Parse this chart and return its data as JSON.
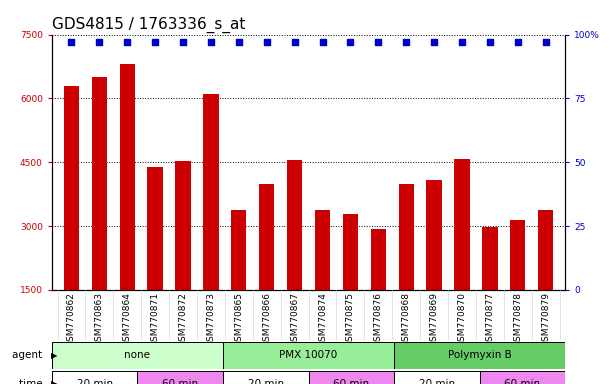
{
  "title": "GDS4815 / 1763336_s_at",
  "samples": [
    "GSM770862",
    "GSM770863",
    "GSM770864",
    "GSM770871",
    "GSM770872",
    "GSM770873",
    "GSM770865",
    "GSM770866",
    "GSM770867",
    "GSM770874",
    "GSM770875",
    "GSM770876",
    "GSM770868",
    "GSM770869",
    "GSM770870",
    "GSM770877",
    "GSM770878",
    "GSM770879"
  ],
  "counts": [
    6300,
    6500,
    6800,
    4380,
    4520,
    6100,
    3380,
    4000,
    4550,
    3380,
    3280,
    2920,
    4000,
    4080,
    4580,
    2980,
    3150,
    3380
  ],
  "percentile_ranks": [
    97,
    97,
    97,
    97,
    97,
    97,
    97,
    97,
    97,
    97,
    97,
    97,
    97,
    97,
    97,
    97,
    97,
    97
  ],
  "bar_color": "#cc0000",
  "dot_color": "#0000cc",
  "ylim_left": [
    1500,
    7500
  ],
  "ylim_right": [
    0,
    100
  ],
  "yticks_left": [
    1500,
    3000,
    4500,
    6000,
    7500
  ],
  "yticks_right": [
    0,
    25,
    50,
    75,
    100
  ],
  "agent_groups": [
    {
      "label": "none",
      "start": 0,
      "end": 6,
      "color": "#ccffcc"
    },
    {
      "label": "PMX 10070",
      "start": 6,
      "end": 12,
      "color": "#99ee99"
    },
    {
      "label": "Polymyxin B",
      "start": 12,
      "end": 18,
      "color": "#66cc66"
    }
  ],
  "time_groups": [
    {
      "label": "20 min",
      "start": 0,
      "end": 3,
      "color": "#ffffff"
    },
    {
      "label": "60 min",
      "start": 3,
      "end": 6,
      "color": "#ee88ee"
    },
    {
      "label": "20 min",
      "start": 6,
      "end": 9,
      "color": "#ffffff"
    },
    {
      "label": "60 min",
      "start": 9,
      "end": 12,
      "color": "#ee88ee"
    },
    {
      "label": "20 min",
      "start": 12,
      "end": 15,
      "color": "#ffffff"
    },
    {
      "label": "60 min",
      "start": 15,
      "end": 18,
      "color": "#ee88ee"
    }
  ],
  "legend_count_color": "#cc0000",
  "legend_pct_color": "#0000cc",
  "background_color": "#ffffff",
  "title_fontsize": 11,
  "tick_fontsize": 6.5,
  "label_fontsize": 7.5,
  "bar_width": 0.55
}
